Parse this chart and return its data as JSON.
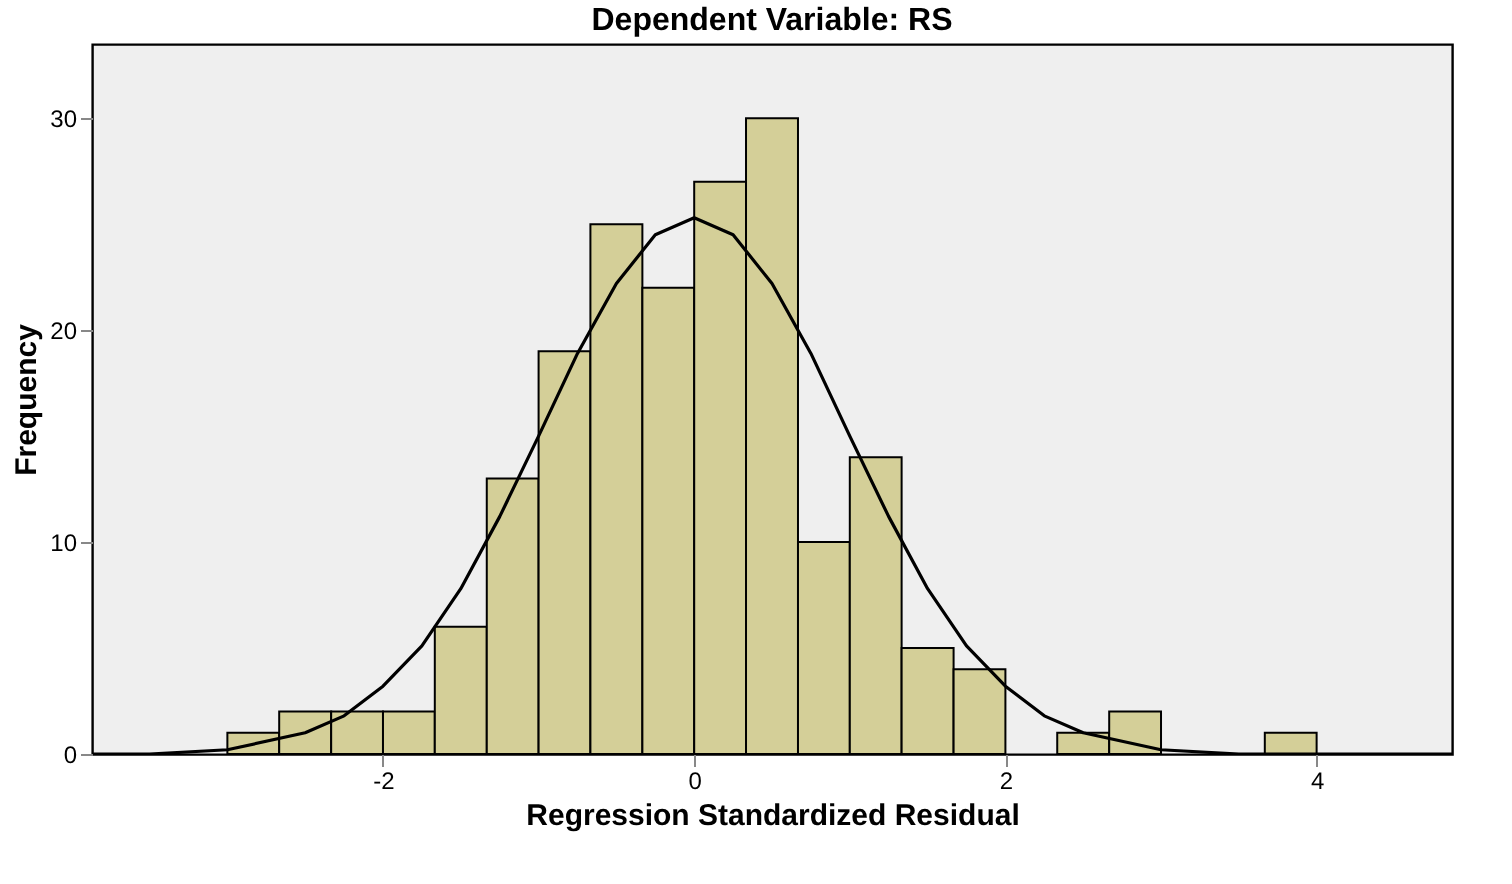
{
  "chart_data": {
    "type": "histogram",
    "title": "Dependent Variable: RS",
    "xlabel": "Regression Standardized Residual",
    "ylabel": "Frequency",
    "bins": [
      -3,
      -2.667,
      -2.333,
      -2,
      -1.667,
      -1.333,
      -1,
      -0.667,
      -0.333,
      0,
      0.333,
      0.667,
      1,
      1.333,
      1.667,
      2,
      2.333,
      2.667,
      3,
      3.333,
      3.667,
      4
    ],
    "values": [
      1,
      2,
      2,
      2,
      6,
      13,
      19,
      25,
      22,
      27,
      30,
      10,
      14,
      5,
      4,
      0,
      1,
      2,
      0,
      0,
      1
    ],
    "color": "#d4cf98",
    "series": [
      {
        "type": "line",
        "color": "#000000",
        "x": [
          -3.87,
          -3.5,
          -3,
          -2.5,
          -2.25,
          -2,
          -1.75,
          -1.5,
          -1.25,
          -1,
          -0.75,
          -0.5,
          -0.25,
          0,
          0.25,
          0.5,
          0.75,
          1,
          1.25,
          1.5,
          1.75,
          2,
          2.25,
          2.5,
          3,
          3.5,
          4,
          4.87
        ],
        "values": [
          0,
          0,
          0.2,
          1,
          1.8,
          3.2,
          5.1,
          7.8,
          11.2,
          15,
          18.9,
          22.2,
          24.5,
          25.3,
          24.5,
          22.2,
          18.9,
          15,
          11.2,
          7.8,
          5.1,
          3.2,
          1.8,
          1,
          0.2,
          0,
          0,
          0
        ]
      }
    ],
    "xlim": [
      -3.87,
      4.87
    ],
    "xticks": [
      -2,
      0,
      2,
      4
    ],
    "ylim": [
      0,
      33.5
    ],
    "yticks": [
      0,
      10,
      20,
      30
    ],
    "grid": false
  }
}
